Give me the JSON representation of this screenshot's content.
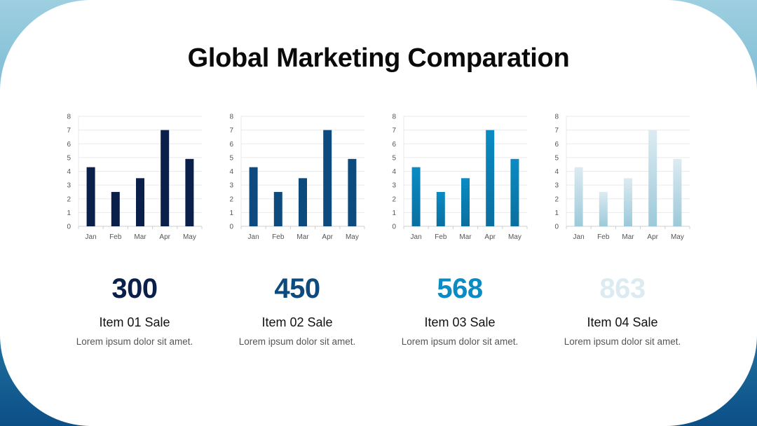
{
  "slide": {
    "title": "Global Marketing Comparation"
  },
  "colors": {
    "item1": "#0b1f4b",
    "item2": "#0d4b7e",
    "item3_top": "#0a8bc4",
    "item3_bottom": "#0b6f9f",
    "item4_top": "#dcebf2",
    "item4_bottom": "#9cc9d9",
    "grid": "#eaeaea",
    "axis": "#cfcfcf"
  },
  "chart_data": [
    {
      "type": "bar",
      "categories": [
        "Jan",
        "Feb",
        "Mar",
        "Apr",
        "May"
      ],
      "values": [
        4.3,
        2.5,
        3.5,
        7,
        4.9
      ],
      "ylim": [
        0,
        8
      ],
      "yticks": [
        0,
        1,
        2,
        3,
        4,
        5,
        6,
        7,
        8
      ],
      "grid": true
    },
    {
      "type": "bar",
      "categories": [
        "Jan",
        "Feb",
        "Mar",
        "Apr",
        "May"
      ],
      "values": [
        4.3,
        2.5,
        3.5,
        7,
        4.9
      ],
      "ylim": [
        0,
        8
      ],
      "yticks": [
        0,
        1,
        2,
        3,
        4,
        5,
        6,
        7,
        8
      ],
      "grid": true
    },
    {
      "type": "bar",
      "categories": [
        "Jan",
        "Feb",
        "Mar",
        "Apr",
        "May"
      ],
      "values": [
        4.3,
        2.5,
        3.5,
        7,
        4.9
      ],
      "ylim": [
        0,
        8
      ],
      "yticks": [
        0,
        1,
        2,
        3,
        4,
        5,
        6,
        7,
        8
      ],
      "grid": true
    },
    {
      "type": "bar",
      "categories": [
        "Jan",
        "Feb",
        "Mar",
        "Apr",
        "May"
      ],
      "values": [
        4.3,
        2.5,
        3.5,
        7,
        4.9
      ],
      "ylim": [
        0,
        8
      ],
      "yticks": [
        0,
        1,
        2,
        3,
        4,
        5,
        6,
        7,
        8
      ],
      "grid": true
    }
  ],
  "items": [
    {
      "value": "300",
      "title": "Item 01 Sale",
      "desc": "Lorem ipsum dolor sit amet."
    },
    {
      "value": "450",
      "title": "Item 02 Sale",
      "desc": "Lorem ipsum dolor sit amet."
    },
    {
      "value": "568",
      "title": "Item 03 Sale",
      "desc": "Lorem ipsum dolor sit amet."
    },
    {
      "value": "863",
      "title": "Item 04 Sale",
      "desc": "Lorem ipsum dolor sit amet."
    }
  ]
}
